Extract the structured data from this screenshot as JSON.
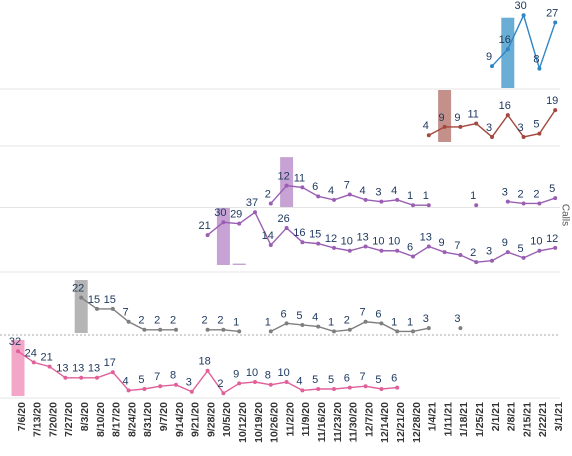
{
  "chart_data": {
    "type": "line",
    "y_label": "Calls",
    "categories": [
      "7/6/20",
      "7/13/20",
      "7/20/20",
      "7/27/20",
      "8/3/20",
      "8/10/20",
      "8/17/20",
      "8/24/20",
      "8/31/20",
      "9/7/20",
      "9/14/20",
      "9/21/20",
      "9/28/20",
      "10/5/20",
      "10/12/20",
      "10/19/20",
      "10/26/20",
      "11/2/20",
      "11/9/20",
      "11/16/20",
      "11/23/20",
      "11/30/20",
      "12/7/20",
      "12/14/20",
      "12/21/20",
      "12/28/20",
      "1/4/21",
      "1/11/21",
      "1/18/21",
      "1/25/21",
      "2/1/21",
      "2/8/21",
      "2/15/21",
      "2/22/21",
      "3/1/21"
    ],
    "panels": [
      {
        "ylim": [
          0,
          33
        ],
        "color": "#2f86c4",
        "bar_color": "#6aaed6",
        "values": [
          null,
          null,
          null,
          null,
          null,
          null,
          null,
          null,
          null,
          null,
          null,
          null,
          null,
          null,
          null,
          null,
          null,
          null,
          null,
          null,
          null,
          null,
          null,
          null,
          null,
          null,
          null,
          null,
          null,
          null,
          9,
          16,
          30,
          8,
          27
        ],
        "bar_values": [
          null,
          null,
          null,
          null,
          null,
          null,
          null,
          null,
          null,
          null,
          null,
          null,
          null,
          null,
          null,
          null,
          null,
          null,
          null,
          null,
          null,
          null,
          null,
          null,
          null,
          null,
          null,
          null,
          null,
          null,
          null,
          29,
          null,
          null,
          null
        ]
      },
      {
        "ylim": [
          0,
          31
        ],
        "color": "#a4473d",
        "bar_color": "#c4908a",
        "values": [
          null,
          null,
          null,
          null,
          null,
          null,
          null,
          null,
          null,
          null,
          null,
          null,
          null,
          null,
          null,
          null,
          null,
          null,
          null,
          null,
          null,
          null,
          null,
          null,
          null,
          null,
          4,
          9,
          9,
          11,
          3,
          16,
          3,
          5,
          19
        ],
        "bar_values": [
          null,
          null,
          null,
          null,
          null,
          null,
          null,
          null,
          null,
          null,
          null,
          null,
          null,
          null,
          null,
          null,
          null,
          null,
          null,
          null,
          null,
          null,
          null,
          null,
          null,
          null,
          null,
          31,
          null,
          null,
          null,
          null,
          null,
          null,
          null
        ]
      },
      {
        "ylim": [
          0,
          32
        ],
        "color": "#9a5fb3",
        "bar_color": "#c6a3d4",
        "values": [
          null,
          null,
          null,
          null,
          null,
          null,
          null,
          null,
          null,
          null,
          null,
          null,
          null,
          null,
          null,
          null,
          2,
          12,
          11,
          6,
          4,
          7,
          4,
          3,
          4,
          1,
          1,
          null,
          null,
          1,
          null,
          3,
          2,
          2,
          5
        ],
        "bar_values": [
          null,
          null,
          null,
          null,
          null,
          null,
          null,
          null,
          null,
          null,
          null,
          null,
          null,
          null,
          null,
          null,
          null,
          28,
          null,
          null,
          null,
          null,
          null,
          null,
          null,
          null,
          null,
          null,
          null,
          null,
          null,
          null,
          null,
          null,
          null
        ]
      },
      {
        "ylim": [
          0,
          40
        ],
        "color": "#9a5fb3",
        "bar_color": "#c6a3d4",
        "values": [
          null,
          null,
          null,
          null,
          null,
          null,
          null,
          null,
          null,
          null,
          null,
          null,
          21,
          30,
          29,
          37,
          14,
          26,
          16,
          15,
          12,
          10,
          13,
          10,
          10,
          6,
          13,
          9,
          7,
          2,
          3,
          9,
          5,
          10,
          12
        ],
        "bar_values": [
          null,
          null,
          null,
          null,
          null,
          null,
          null,
          null,
          null,
          null,
          null,
          null,
          null,
          40,
          1,
          null,
          null,
          null,
          null,
          null,
          null,
          null,
          null,
          null,
          null,
          null,
          null,
          null,
          null,
          null,
          null,
          null,
          null,
          null,
          null
        ]
      },
      {
        "ylim": [
          0,
          33
        ],
        "color": "#7f7f7f",
        "bar_color": "#b5b5b5",
        "values": [
          null,
          null,
          null,
          null,
          22,
          15,
          15,
          7,
          2,
          2,
          2,
          null,
          2,
          2,
          1,
          null,
          1,
          6,
          5,
          4,
          1,
          2,
          7,
          6,
          1,
          1,
          3,
          null,
          3,
          null,
          null,
          null,
          null,
          null,
          null
        ],
        "bar_values": [
          null,
          null,
          null,
          null,
          33,
          null,
          null,
          null,
          null,
          null,
          null,
          null,
          null,
          null,
          null,
          null,
          null,
          null,
          null,
          null,
          null,
          null,
          null,
          null,
          null,
          null,
          null,
          null,
          null,
          null,
          null,
          null,
          null,
          null,
          null
        ]
      },
      {
        "ylim": [
          0,
          40
        ],
        "color": "#e0609a",
        "bar_color": "#f4a6c8",
        "values": [
          32,
          24,
          21,
          13,
          13,
          13,
          17,
          4,
          5,
          7,
          8,
          3,
          18,
          2,
          9,
          10,
          8,
          10,
          4,
          5,
          5,
          6,
          7,
          5,
          6,
          null,
          null,
          null,
          null,
          null,
          null,
          null,
          null,
          null,
          null
        ],
        "bar_values": [
          40,
          null,
          null,
          null,
          null,
          null,
          null,
          null,
          null,
          null,
          null,
          null,
          null,
          null,
          null,
          null,
          null,
          null,
          null,
          null,
          null,
          null,
          null,
          null,
          null,
          null,
          null,
          null,
          null,
          null,
          null,
          null,
          null,
          null,
          null
        ]
      }
    ]
  }
}
